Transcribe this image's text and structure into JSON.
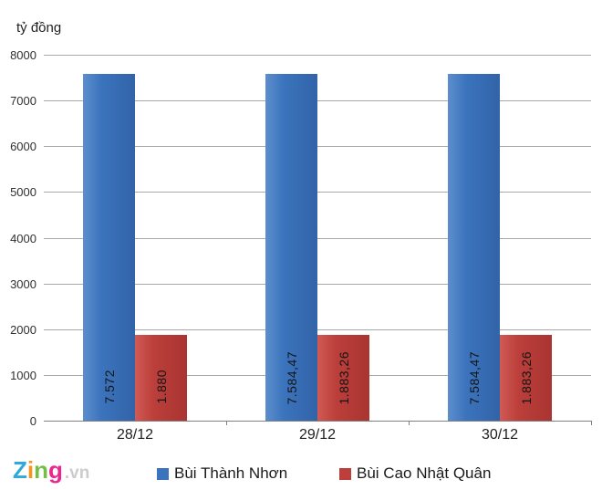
{
  "ylabel_unit": "tỷ đồng",
  "branding": {
    "logo_letters": [
      {
        "char": "Z",
        "color": "#2fa8dc"
      },
      {
        "char": "i",
        "color": "#f7941e"
      },
      {
        "char": "n",
        "color": "#72bf44"
      },
      {
        "char": "g",
        "color": "#ec268f"
      }
    ],
    "logo_suffix": ".vn",
    "logo_suffix_color": "#cccccc"
  },
  "chart_data": {
    "type": "bar",
    "title": "",
    "xlabel": "",
    "ylabel": "tỷ đồng",
    "categories": [
      "28/12",
      "29/12",
      "30/12"
    ],
    "series": [
      {
        "name": "Bùi Thành Nhơn",
        "color": "#3b74bd",
        "color_light": "#5d8ecd",
        "color_dark": "#3263a8",
        "values": [
          7572,
          7584.47,
          7584.47
        ],
        "labels": [
          "7.572",
          "7.584,47",
          "7.584,47"
        ]
      },
      {
        "name": "Bùi Cao Nhật Quân",
        "color": "#bc3f3b",
        "color_light": "#d05a54",
        "color_dark": "#a93431",
        "values": [
          1880,
          1883.26,
          1883.26
        ],
        "labels": [
          "1.880",
          "1.883,26",
          "1.883,26"
        ]
      }
    ],
    "ylim": [
      0,
      8000
    ],
    "yticks": [
      0,
      1000,
      2000,
      3000,
      4000,
      5000,
      6000,
      7000,
      8000
    ],
    "grid": true,
    "legend_position": "bottom"
  }
}
